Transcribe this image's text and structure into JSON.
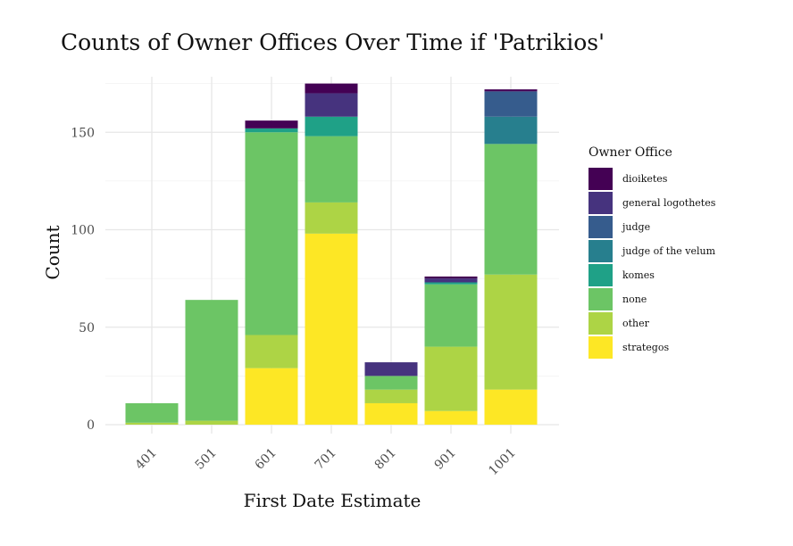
{
  "chart_data": {
    "type": "bar",
    "stacked": true,
    "title": "Counts of Owner Offices Over Time if 'Patrikios'",
    "xlabel": "First Date Estimate",
    "ylabel": "Count",
    "categories": [
      "401",
      "501",
      "601",
      "701",
      "801",
      "901",
      "1001"
    ],
    "ylim": [
      0,
      180
    ],
    "yticks": [
      0,
      50,
      100,
      150
    ],
    "grid": true,
    "legend": {
      "title": "Owner Office",
      "position": "right"
    },
    "stack_order": [
      "strategos",
      "other",
      "none",
      "komes",
      "judge of the velum",
      "judge",
      "general logothetes",
      "dioiketes"
    ],
    "series": [
      {
        "name": "dioiketes",
        "color": "#440154",
        "values": [
          0,
          0,
          4,
          5,
          0,
          1,
          1
        ]
      },
      {
        "name": "general logothetes",
        "color": "#46337E",
        "values": [
          0,
          0,
          0,
          12,
          7,
          2,
          0
        ]
      },
      {
        "name": "judge",
        "color": "#365C8D",
        "values": [
          0,
          0,
          0,
          0,
          0,
          0,
          13
        ]
      },
      {
        "name": "judge of the velum",
        "color": "#277F8E",
        "values": [
          0,
          0,
          0,
          0,
          0,
          0,
          14
        ]
      },
      {
        "name": "komes",
        "color": "#1FA187",
        "values": [
          0,
          0,
          2,
          10,
          0,
          1,
          0
        ]
      },
      {
        "name": "none",
        "color": "#6CC565",
        "values": [
          10,
          62,
          104,
          34,
          7,
          32,
          67
        ]
      },
      {
        "name": "other",
        "color": "#ADD445",
        "values": [
          1,
          2,
          17,
          16,
          7,
          33,
          59
        ]
      },
      {
        "name": "strategos",
        "color": "#FDE725",
        "values": [
          0,
          0,
          29,
          98,
          11,
          7,
          18
        ]
      }
    ]
  }
}
